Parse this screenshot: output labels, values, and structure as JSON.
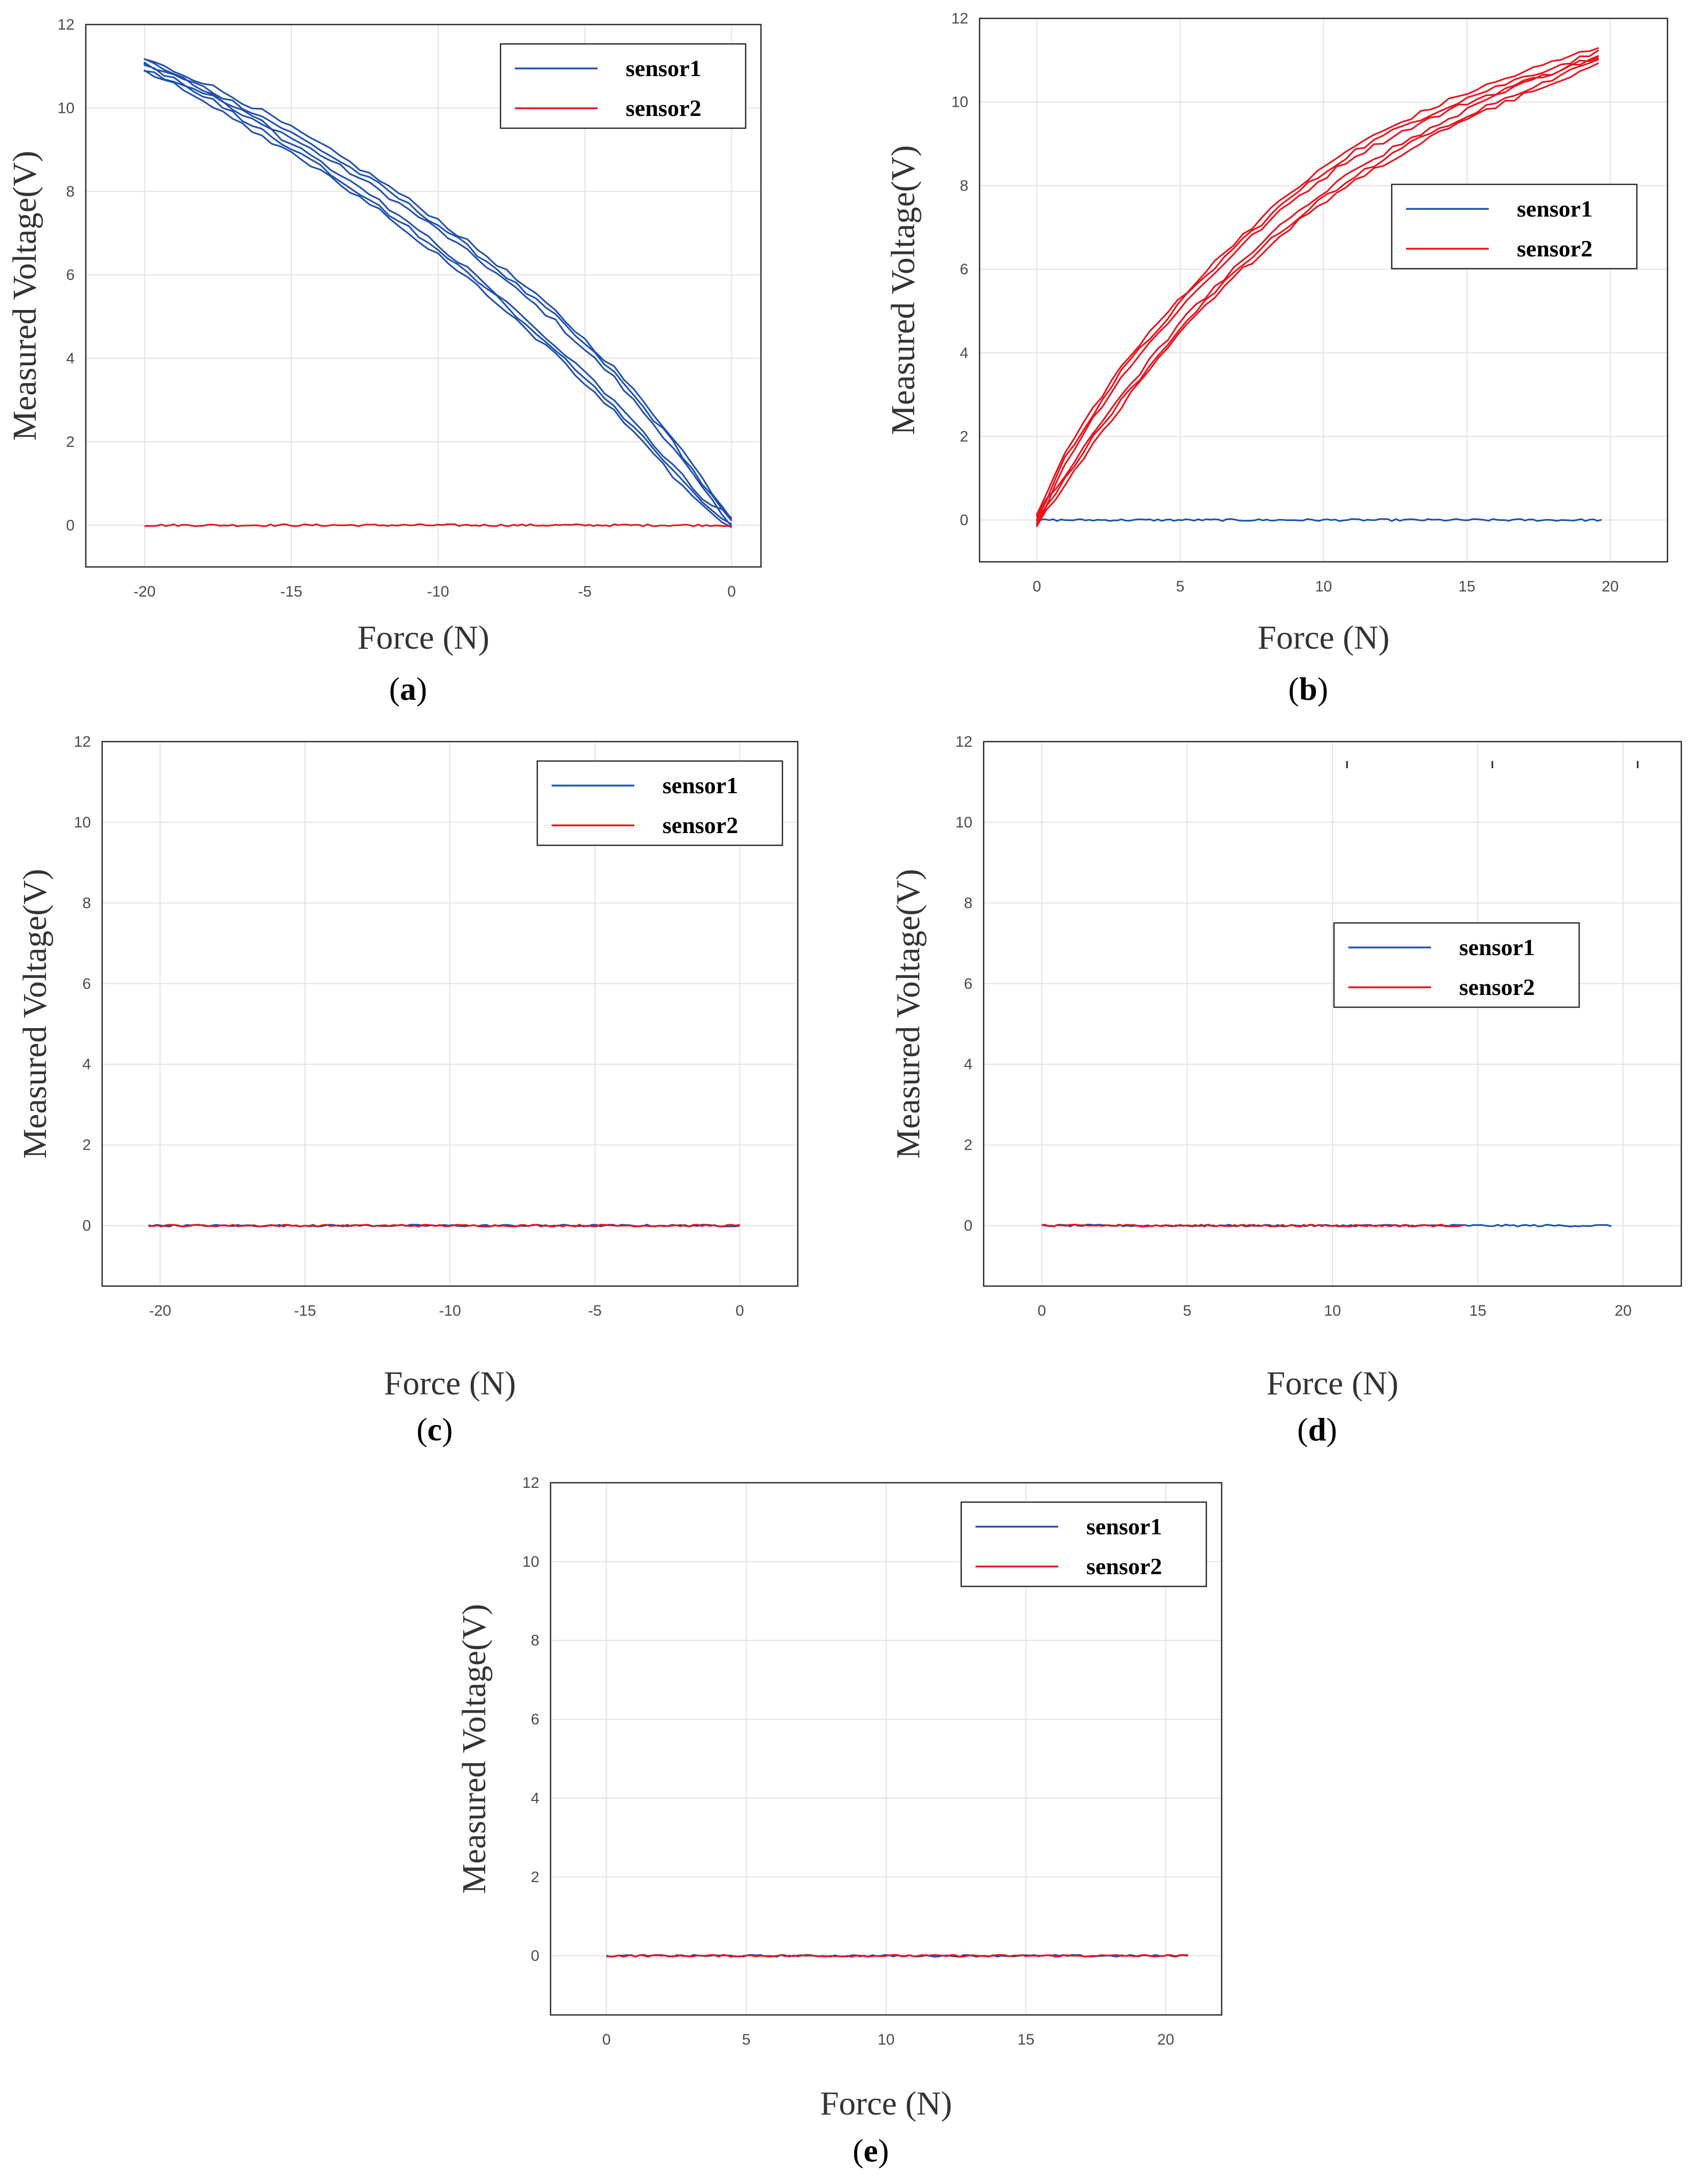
{
  "colors": {
    "sensor1": "#1f4fb0",
    "sensor2": "#e8121b",
    "grid": "#e2e2e2",
    "frame": "#262626"
  },
  "chart_data": [
    {
      "id": "a",
      "type": "line",
      "caption": "a",
      "xlabel": "Force (N)",
      "ylabel": "Measured Voltage(V)",
      "xlim": [
        -22,
        1
      ],
      "ylim": [
        -1,
        12
      ],
      "xticks": [
        -20,
        -15,
        -10,
        -5,
        0
      ],
      "xtick_labels": [
        "-20",
        "-15",
        "-10",
        "-5",
        "0"
      ],
      "yticks": [
        0,
        2,
        4,
        6,
        8,
        10,
        12
      ],
      "ytick_labels": [
        "0",
        "2",
        "4",
        "6",
        "8",
        "10",
        "12"
      ],
      "grid": true,
      "legend_position": "top-right",
      "legend": [
        "sensor1",
        "sensor2"
      ],
      "series": [
        {
          "name": "sensor1",
          "color_key": "sensor1",
          "cycles": 3,
          "hysteresis_loop": true,
          "x": [
            -20,
            -18,
            -16,
            -14,
            -12,
            -10,
            -8,
            -6,
            -4,
            -2,
            -1,
            0
          ],
          "y_loading": [
            11.05,
            10.3,
            9.45,
            8.6,
            7.65,
            6.6,
            5.45,
            4.2,
            2.85,
            1.3,
            0.55,
            0.05
          ],
          "y_unloading": [
            11.05,
            10.5,
            9.8,
            9.0,
            8.15,
            7.2,
            6.15,
            5.0,
            3.65,
            2.0,
            1.0,
            0.05
          ]
        },
        {
          "name": "sensor2",
          "color_key": "sensor2",
          "cycles": 1,
          "hysteresis_loop": false,
          "x": [
            -20,
            -15,
            -10,
            -5,
            0
          ],
          "y": [
            0,
            0,
            0,
            0,
            0
          ]
        }
      ]
    },
    {
      "id": "b",
      "type": "line",
      "caption": "b",
      "xlabel": "Force (N)",
      "ylabel": "Measured Voltage(V)",
      "xlim": [
        -2,
        22
      ],
      "ylim": [
        -1,
        12
      ],
      "xticks": [
        0,
        5,
        10,
        15,
        20
      ],
      "xtick_labels": [
        "0",
        "5",
        "10",
        "15",
        "20"
      ],
      "yticks": [
        0,
        2,
        4,
        6,
        8,
        10,
        12
      ],
      "ytick_labels": [
        "0",
        "2",
        "4",
        "6",
        "8",
        "10",
        "12"
      ],
      "grid": true,
      "legend_position": "upper-right",
      "legend": [
        "sensor1",
        "sensor2"
      ],
      "series": [
        {
          "name": "sensor1",
          "color_key": "sensor1",
          "cycles": 1,
          "hysteresis_loop": false,
          "x": [
            0,
            5,
            10,
            15,
            19.7
          ],
          "y": [
            0,
            0,
            0,
            0,
            0
          ]
        },
        {
          "name": "sensor2",
          "color_key": "sensor2",
          "cycles": 3,
          "hysteresis_loop": true,
          "x": [
            0,
            1,
            2,
            3,
            5,
            7,
            9,
            11,
            13,
            15,
            17,
            19.6
          ],
          "y_loading": [
            0,
            1.0,
            2.0,
            2.9,
            4.6,
            6.0,
            7.2,
            8.2,
            9.0,
            9.7,
            10.3,
            11.0
          ],
          "y_unloading": [
            0,
            1.5,
            2.6,
            3.6,
            5.2,
            6.6,
            7.8,
            8.8,
            9.5,
            10.1,
            10.6,
            11.2
          ]
        }
      ]
    },
    {
      "id": "c",
      "type": "line",
      "caption": "c",
      "xlabel": "Force (N)",
      "ylabel": "Measured Voltage(V)",
      "xlim": [
        -22,
        2
      ],
      "ylim": [
        -1.5,
        12
      ],
      "xticks": [
        -20,
        -15,
        -10,
        -5,
        0
      ],
      "xtick_labels": [
        "-20",
        "-15",
        "-10",
        "-5",
        "0"
      ],
      "yticks": [
        0,
        2,
        4,
        6,
        8,
        10,
        12
      ],
      "ytick_labels": [
        "0",
        "2",
        "4",
        "6",
        "8",
        "10",
        "12"
      ],
      "grid": true,
      "legend_position": "top-right",
      "legend": [
        "sensor1",
        "sensor2"
      ],
      "series": [
        {
          "name": "sensor1",
          "color_key": "sensor1",
          "cycles": 1,
          "hysteresis_loop": false,
          "x": [
            -20.4,
            -15,
            -10,
            -5,
            0
          ],
          "y": [
            0,
            0,
            0,
            0,
            0
          ]
        },
        {
          "name": "sensor2",
          "color_key": "sensor2",
          "cycles": 1,
          "hysteresis_loop": false,
          "x": [
            -20.4,
            -15,
            -10,
            -5,
            0
          ],
          "y": [
            0,
            0,
            0,
            0,
            0
          ]
        }
      ]
    },
    {
      "id": "d",
      "type": "line",
      "caption": "d",
      "xlabel": "Force (N)",
      "ylabel": "Measured Voltage(V)",
      "xlim": [
        -2,
        22
      ],
      "ylim": [
        -1.5,
        12
      ],
      "xticks": [
        0,
        5,
        10,
        15,
        20
      ],
      "xtick_labels": [
        "0",
        "5",
        "10",
        "15",
        "20"
      ],
      "yticks": [
        0,
        2,
        4,
        6,
        8,
        10,
        12
      ],
      "ytick_labels": [
        "0",
        "2",
        "4",
        "6",
        "8",
        "10",
        "12"
      ],
      "grid": true,
      "legend_position": "right",
      "legend": [
        "sensor1",
        "sensor2"
      ],
      "series": [
        {
          "name": "sensor1",
          "color_key": "sensor1",
          "cycles": 1,
          "hysteresis_loop": false,
          "x": [
            0,
            5,
            10,
            15,
            19.6
          ],
          "y": [
            0,
            0,
            0,
            0,
            0
          ]
        },
        {
          "name": "sensor2",
          "color_key": "sensor2",
          "cycles": 1,
          "hysteresis_loop": false,
          "x": [
            0,
            5,
            10,
            14.5
          ],
          "y": [
            0,
            0,
            0,
            0
          ]
        }
      ],
      "stray_markers_x": [
        10.5,
        15.5,
        20.5
      ]
    },
    {
      "id": "e",
      "type": "line",
      "caption": "e",
      "xlabel": "Force (N)",
      "ylabel": "Measured Voltage(V)",
      "xlim": [
        -2,
        22
      ],
      "ylim": [
        -1.5,
        12
      ],
      "xticks": [
        0,
        5,
        10,
        15,
        20
      ],
      "xtick_labels": [
        "0",
        "5",
        "10",
        "15",
        "20"
      ],
      "yticks": [
        0,
        2,
        4,
        6,
        8,
        10,
        12
      ],
      "ytick_labels": [
        "0",
        "2",
        "4",
        "6",
        "8",
        "10",
        "12"
      ],
      "grid": true,
      "legend_position": "top-right",
      "legend": [
        "sensor1",
        "sensor2"
      ],
      "series": [
        {
          "name": "sensor1",
          "color_key": "sensor1",
          "cycles": 1,
          "hysteresis_loop": false,
          "x": [
            0,
            5,
            10,
            15,
            20.8
          ],
          "y": [
            0,
            0,
            0,
            0,
            0
          ]
        },
        {
          "name": "sensor2",
          "color_key": "sensor2",
          "cycles": 1,
          "hysteresis_loop": false,
          "x": [
            0,
            5,
            10,
            15,
            20.8
          ],
          "y": [
            0,
            0,
            0,
            0,
            0
          ]
        }
      ]
    }
  ]
}
